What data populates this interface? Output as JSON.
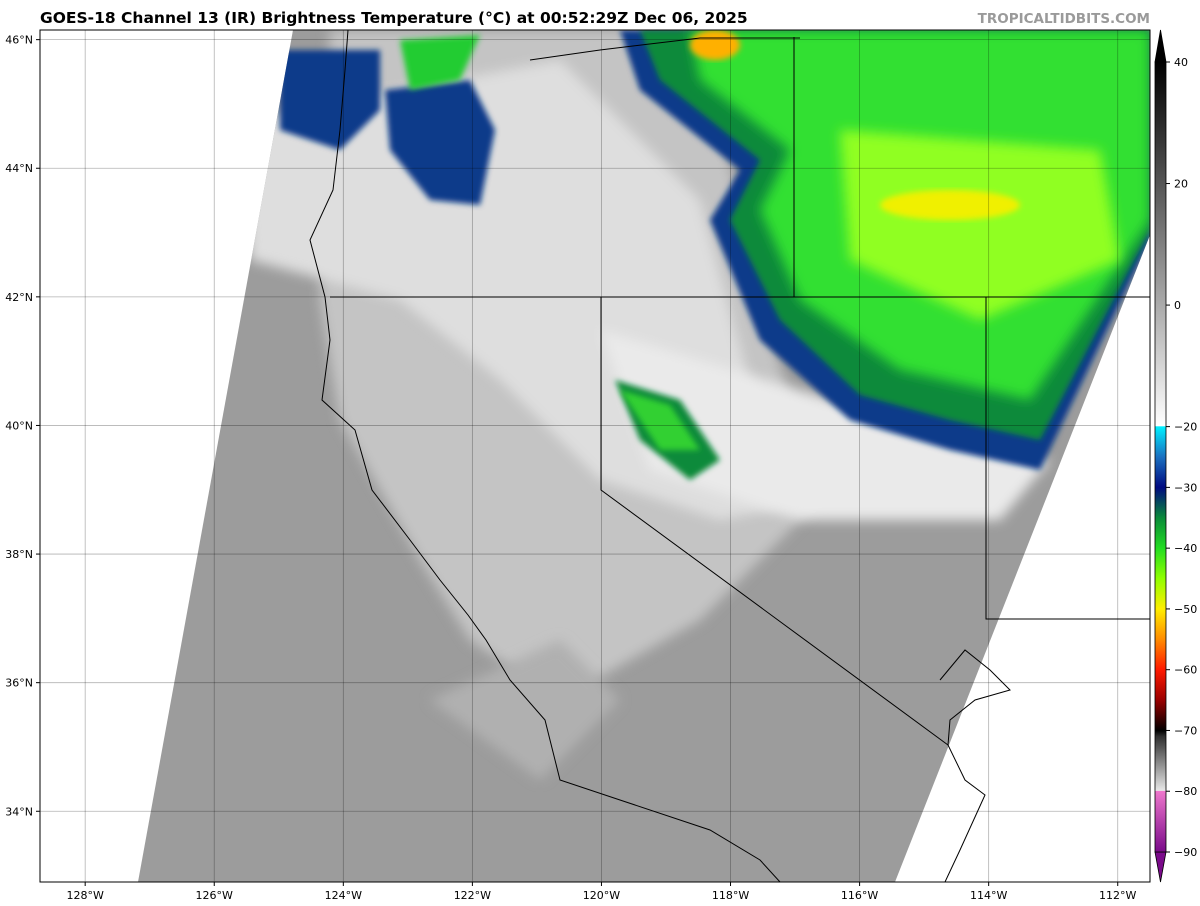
{
  "title": "GOES-18 Channel 13 (IR) Brightness Temperature (°C) at 00:52:29Z Dec 06, 2025",
  "credit": "TROPICALTIDBITS.COM",
  "map": {
    "extent": {
      "lon_min": -128.7,
      "lon_max": -111.5,
      "lat_min": 32.9,
      "lat_max": 46.15
    },
    "lon_ticks": [
      {
        "v": -128,
        "label": "128°W"
      },
      {
        "v": -126,
        "label": "126°W"
      },
      {
        "v": -124,
        "label": "124°W"
      },
      {
        "v": -122,
        "label": "122°W"
      },
      {
        "v": -120,
        "label": "120°W"
      },
      {
        "v": -118,
        "label": "118°W"
      },
      {
        "v": -116,
        "label": "116°W"
      },
      {
        "v": -114,
        "label": "114°W"
      },
      {
        "v": -112,
        "label": "112°W"
      }
    ],
    "lat_ticks": [
      {
        "v": 46,
        "label": "46°N"
      },
      {
        "v": 44,
        "label": "44°N"
      },
      {
        "v": 42,
        "label": "42°N"
      },
      {
        "v": 40,
        "label": "40°N"
      },
      {
        "v": 38,
        "label": "38°N"
      },
      {
        "v": 36,
        "label": "36°N"
      },
      {
        "v": 34,
        "label": "34°N"
      }
    ],
    "grid": true
  },
  "colorbar": {
    "min": -90,
    "max": 40,
    "extend": "both",
    "ticks": [
      {
        "v": 40,
        "label": "40"
      },
      {
        "v": 20,
        "label": "20"
      },
      {
        "v": 0,
        "label": "0"
      },
      {
        "v": -20,
        "label": "−20"
      },
      {
        "v": -30,
        "label": "−30"
      },
      {
        "v": -40,
        "label": "−40"
      },
      {
        "v": -50,
        "label": "−50"
      },
      {
        "v": -60,
        "label": "−60"
      },
      {
        "v": -70,
        "label": "−70"
      },
      {
        "v": -80,
        "label": "−80"
      },
      {
        "v": -90,
        "label": "−90"
      }
    ],
    "stops": [
      {
        "v": -90,
        "color": "#7a0a8a"
      },
      {
        "v": -80,
        "color": "#ee77cc"
      },
      {
        "v": -79.9,
        "color": "#e8e8e8"
      },
      {
        "v": -71,
        "color": "#303030"
      },
      {
        "v": -70,
        "color": "#000000"
      },
      {
        "v": -65,
        "color": "#9a0000"
      },
      {
        "v": -60,
        "color": "#ff1a00"
      },
      {
        "v": -55,
        "color": "#ff8c00"
      },
      {
        "v": -50,
        "color": "#ffee00"
      },
      {
        "v": -45,
        "color": "#90ff00"
      },
      {
        "v": -40,
        "color": "#22dd22"
      },
      {
        "v": -35,
        "color": "#0a8a3a"
      },
      {
        "v": -30,
        "color": "#000a80"
      },
      {
        "v": -25,
        "color": "#1a70c0"
      },
      {
        "v": -20,
        "color": "#00f0ff"
      },
      {
        "v": -19.9,
        "color": "#ffffff"
      },
      {
        "v": 40,
        "color": "#000000"
      }
    ]
  }
}
